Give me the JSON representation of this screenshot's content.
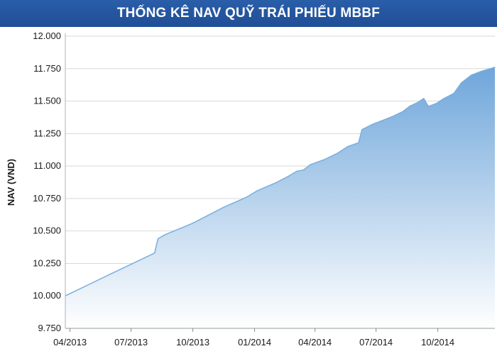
{
  "title": "THỐNG KÊ NAV QUỸ TRÁI PHIẾU MBBF",
  "colors": {
    "title_bg": "#1f4e96",
    "fill_top": "#7aaedd",
    "fill_bottom": "#ffffff",
    "line": "#7aaedd",
    "grid": "#d9d9d9"
  },
  "chart_data": {
    "type": "area",
    "title": "THỐNG KÊ NAV QUỸ TRÁI PHIẾU MBBF",
    "xlabel": "",
    "ylabel": "NAV (VND)",
    "ylim": [
      9750,
      12000
    ],
    "xlim": [
      "2013-03-25",
      "2014-12-25"
    ],
    "grid": true,
    "legend": "none",
    "y_ticks": [
      {
        "value": 12000,
        "label": "12.000"
      },
      {
        "value": 11750,
        "label": "11.750"
      },
      {
        "value": 11500,
        "label": "11.500"
      },
      {
        "value": 11250,
        "label": "11.250"
      },
      {
        "value": 11000,
        "label": "11.000"
      },
      {
        "value": 10750,
        "label": "10.750"
      },
      {
        "value": 10500,
        "label": "10.500"
      },
      {
        "value": 10250,
        "label": "10.250"
      },
      {
        "value": 10000,
        "label": "10.000"
      },
      {
        "value": 9750,
        "label": "9.750"
      }
    ],
    "x_ticks": [
      {
        "date": "2013-04-01",
        "label": "04/2013"
      },
      {
        "date": "2013-07-01",
        "label": "07/2013"
      },
      {
        "date": "2013-10-01",
        "label": "10/2013"
      },
      {
        "date": "2014-01-01",
        "label": "01/2014"
      },
      {
        "date": "2014-04-01",
        "label": "04/2014"
      },
      {
        "date": "2014-07-01",
        "label": "07/2014"
      },
      {
        "date": "2014-10-01",
        "label": "10/2014"
      }
    ],
    "series": [
      {
        "points": [
          {
            "x": "2013-03-25",
            "y": 10000
          },
          {
            "x": "2013-06-01",
            "y": 10170
          },
          {
            "x": "2013-07-20",
            "y": 10290
          },
          {
            "x": "2013-08-05",
            "y": 10330
          },
          {
            "x": "2013-08-10",
            "y": 10440
          },
          {
            "x": "2013-08-20",
            "y": 10470
          },
          {
            "x": "2013-10-01",
            "y": 10560
          },
          {
            "x": "2013-11-15",
            "y": 10680
          },
          {
            "x": "2013-12-20",
            "y": 10760
          },
          {
            "x": "2014-01-05",
            "y": 10810
          },
          {
            "x": "2014-02-01",
            "y": 10870
          },
          {
            "x": "2014-02-20",
            "y": 10920
          },
          {
            "x": "2014-03-05",
            "y": 10960
          },
          {
            "x": "2014-03-15",
            "y": 10970
          },
          {
            "x": "2014-03-25",
            "y": 11010
          },
          {
            "x": "2014-04-15",
            "y": 11050
          },
          {
            "x": "2014-05-05",
            "y": 11100
          },
          {
            "x": "2014-05-20",
            "y": 11150
          },
          {
            "x": "2014-06-05",
            "y": 11180
          },
          {
            "x": "2014-06-10",
            "y": 11280
          },
          {
            "x": "2014-06-25",
            "y": 11320
          },
          {
            "x": "2014-07-25",
            "y": 11380
          },
          {
            "x": "2014-08-10",
            "y": 11420
          },
          {
            "x": "2014-08-20",
            "y": 11460
          },
          {
            "x": "2014-09-01",
            "y": 11490
          },
          {
            "x": "2014-09-10",
            "y": 11520
          },
          {
            "x": "2014-09-17",
            "y": 11460
          },
          {
            "x": "2014-09-28",
            "y": 11480
          },
          {
            "x": "2014-10-10",
            "y": 11520
          },
          {
            "x": "2014-10-25",
            "y": 11560
          },
          {
            "x": "2014-11-05",
            "y": 11640
          },
          {
            "x": "2014-11-20",
            "y": 11700
          },
          {
            "x": "2014-12-05",
            "y": 11730
          },
          {
            "x": "2014-12-25",
            "y": 11760
          }
        ]
      }
    ]
  }
}
